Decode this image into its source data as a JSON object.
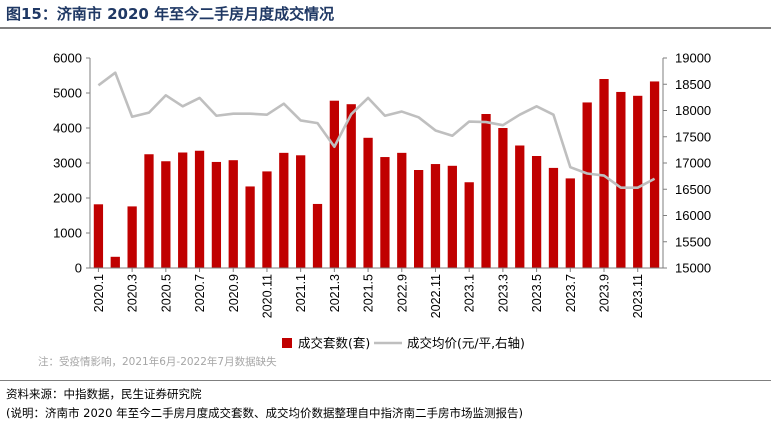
{
  "title": "图15：济南市 2020 年至今二手房月度成交情况",
  "note": "注：受疫情影响，2021年6月-2022年7月数据缺失",
  "source": "资料来源：中指数据，民生证券研究院",
  "footnote": "(说明：济南市 2020 年至今二手房月度成交套数、成交均价数据整理自中指济南二手房市场监测报告)",
  "colors": {
    "bar": "#c00000",
    "line": "#bfbfbf",
    "title": "#1f3864"
  },
  "chart_data": {
    "type": "bar",
    "legend_position": "bottom",
    "grid": false,
    "left_axis": {
      "ylim": [
        0,
        6000
      ],
      "ticks": [
        "0",
        "1000",
        "2000",
        "3000",
        "4000",
        "5000",
        "6000"
      ]
    },
    "right_axis": {
      "ylim": [
        15000,
        19000
      ],
      "ticks": [
        "15000",
        "15500",
        "16000",
        "16500",
        "17000",
        "17500",
        "18000",
        "18500",
        "19000"
      ]
    },
    "x_tick_labels": [
      "2020.1",
      "2020.3",
      "2020.5",
      "2020.7",
      "2020.9",
      "2020.11",
      "2021.1",
      "2021.3",
      "2021.5",
      "2022.9",
      "2022.11",
      "2023.1",
      "2023.3",
      "2023.5",
      "2023.7",
      "2023.9",
      "2023.11"
    ],
    "categories": [
      "2020.1",
      "2020.2",
      "2020.3",
      "2020.4",
      "2020.5",
      "2020.6",
      "2020.7",
      "2020.8",
      "2020.9",
      "2020.10",
      "2020.11",
      "2020.12",
      "2021.1",
      "2021.2",
      "2021.3",
      "2021.4",
      "2021.5",
      "2022.8",
      "2022.9",
      "2022.10",
      "2022.11",
      "2022.12",
      "2023.1",
      "2023.2",
      "2023.3",
      "2023.4",
      "2023.5",
      "2023.6",
      "2023.7",
      "2023.8",
      "2023.9",
      "2023.10",
      "2023.11",
      "2023.12"
    ],
    "series": [
      {
        "name": "成交套数(套)",
        "type": "bar",
        "axis": "left",
        "values": [
          1820,
          320,
          1760,
          3250,
          3050,
          3300,
          3350,
          3030,
          3080,
          2330,
          2760,
          3290,
          3220,
          1830,
          4780,
          4680,
          3720,
          3170,
          3290,
          2800,
          2970,
          2920,
          2450,
          4400,
          4000,
          3500,
          3200,
          2860,
          2560,
          4730,
          5400,
          5030,
          4920,
          5330
        ]
      },
      {
        "name": "成交均价(元/平,右轴)",
        "type": "line",
        "axis": "right",
        "values": [
          18480,
          18720,
          17880,
          17960,
          18290,
          18080,
          18240,
          17900,
          17940,
          17940,
          17920,
          18130,
          17810,
          17760,
          17310,
          17930,
          18240,
          17900,
          17980,
          17870,
          17620,
          17520,
          17790,
          17780,
          17720,
          17920,
          18080,
          17920,
          16920,
          16800,
          16760,
          16530,
          16530,
          16700
        ]
      }
    ]
  }
}
